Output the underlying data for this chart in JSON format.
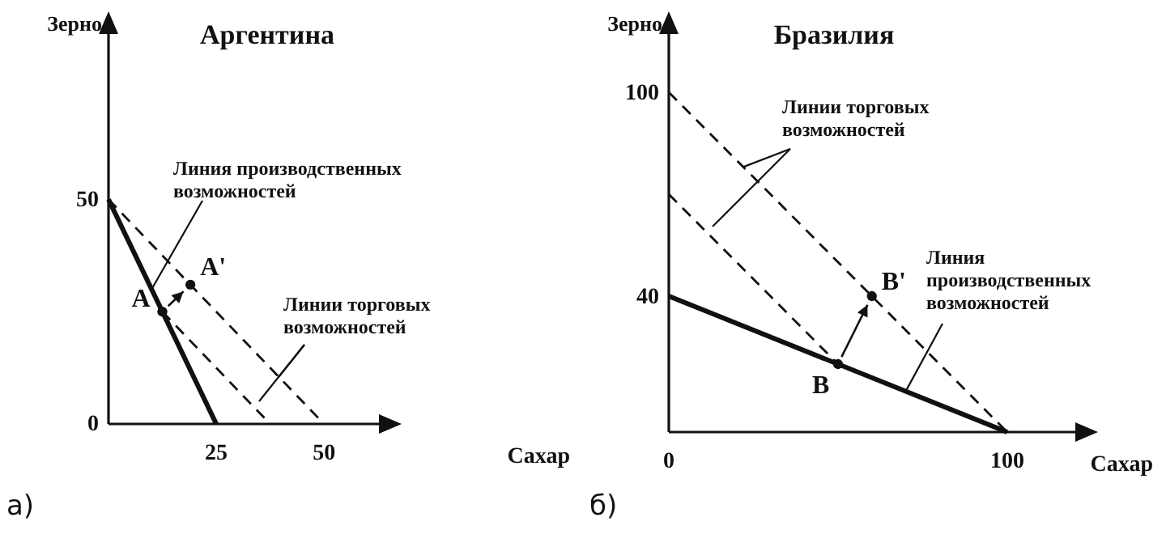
{
  "chart_data": [
    {
      "type": "line",
      "title": "Аргентина",
      "xlabel": "Сахар",
      "ylabel": "Зерно",
      "xlim": [
        0,
        65
      ],
      "ylim": [
        0,
        89
      ],
      "xticks": [
        25,
        50
      ],
      "yticks": [
        0,
        50
      ],
      "grid": false,
      "series": [
        {
          "x": [
            0,
            25
          ],
          "values": [
            50,
            0
          ],
          "color": "#111111",
          "line_style": "solid"
        },
        {
          "x": [
            12.5,
            37.5
          ],
          "values": [
            25,
            0
          ],
          "color": "#111111",
          "line_style": "dashed"
        },
        {
          "x": [
            0,
            50
          ],
          "values": [
            50,
            0
          ],
          "color": "#111111",
          "line_style": "dashed"
        },
        {
          "type": "scatter",
          "x": [
            12.5,
            19
          ],
          "values": [
            25,
            31
          ],
          "color": "#111111",
          "marker": "circle"
        }
      ],
      "annotations": [
        {
          "text": "A",
          "x": 12.5,
          "y": 25
        },
        {
          "text": "A'",
          "x": 19,
          "y": 31
        },
        {
          "text": "Линия производственных возможностей",
          "x": 10,
          "y": 30
        },
        {
          "text": "Линии торговых возможностей",
          "x": 39.5,
          "y": 10.5
        },
        "а)"
      ]
    },
    {
      "type": "line",
      "title": "Бразилия",
      "xlabel": "Сахар",
      "ylabel": "Зерно",
      "xlim": [
        0,
        123
      ],
      "ylim": [
        0,
        120
      ],
      "xticks": [
        0,
        100
      ],
      "yticks": [
        40,
        100
      ],
      "grid": false,
      "series": [
        {
          "x": [
            0,
            100
          ],
          "values": [
            40,
            0
          ],
          "color": "#111111",
          "line_style": "solid"
        },
        {
          "x": [
            0,
            50
          ],
          "values": [
            70,
            20
          ],
          "color": "#111111",
          "line_style": "dashed"
        },
        {
          "x": [
            0,
            100
          ],
          "values": [
            100,
            0
          ],
          "color": "#111111",
          "line_style": "dashed"
        },
        {
          "type": "scatter",
          "x": [
            50,
            60
          ],
          "values": [
            20,
            40
          ],
          "color": "#111111",
          "marker": "circle"
        }
      ],
      "annotations": [
        {
          "text": "B",
          "x": 50,
          "y": 20
        },
        {
          "text": "B'",
          "x": 60,
          "y": 40
        },
        {
          "text": "Линии торговых возможностей",
          "x": 22,
          "y": 78
        },
        {
          "text": "Линия производственных возможностей",
          "x": 70,
          "y": 12
        },
        "б)"
      ]
    }
  ]
}
